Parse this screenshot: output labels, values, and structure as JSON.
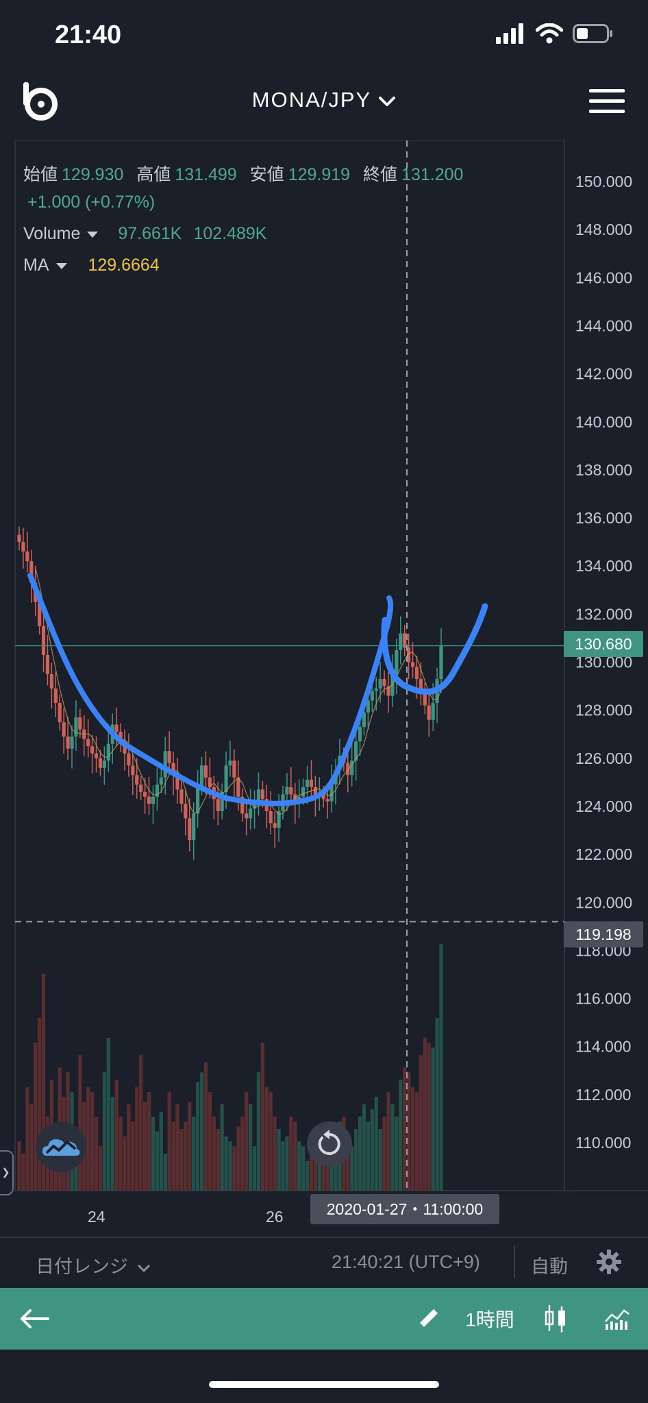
{
  "status_bar": {
    "time": "21:40"
  },
  "header": {
    "pair": "MONA/JPY"
  },
  "ohlc": {
    "open_label": "始値",
    "open": "129.930",
    "high_label": "高値",
    "high": "131.499",
    "low_label": "安値",
    "low": "129.919",
    "close_label": "終値",
    "close": "131.200",
    "change": "+1.000 (+0.77%)"
  },
  "volume": {
    "label": "Volume",
    "value1": "97.661K",
    "value2": "102.489K"
  },
  "ma": {
    "label": "MA",
    "value": "129.6664"
  },
  "price_axis": {
    "labels": [
      "150.000",
      "148.000",
      "146.000",
      "144.000",
      "142.000",
      "140.000",
      "138.000",
      "136.000",
      "134.000",
      "132.000",
      "130.000",
      "128.000",
      "126.000",
      "124.000",
      "122.000",
      "120.000",
      "118.000",
      "116.000",
      "114.000",
      "112.000",
      "110.000"
    ]
  },
  "current_price": "130.680",
  "crosshair_price": "119.198",
  "crosshair_date": "2020-01-27・11:00:00",
  "x_axis": {
    "labels": [
      "24",
      "26"
    ]
  },
  "range_bar": {
    "label": "日付レンジ",
    "time": "21:40:21 (UTC+9)",
    "auto": "自動"
  },
  "toolbar": {
    "interval": "1時間"
  },
  "colors": {
    "up": "#3f9484",
    "down": "#d0625a",
    "accent": "#3f9484",
    "ma": "#f0c23f",
    "drawing": "#3b82f6"
  },
  "chart_data": {
    "type": "candlestick",
    "pair": "MONA/JPY",
    "ylim": [
      108.0,
      151.0
    ],
    "closes": [
      135.0,
      134.6,
      134.2,
      133.3,
      132.5,
      131.5,
      130.3,
      129.5,
      128.9,
      128.3,
      127.5,
      126.9,
      126.4,
      126.9,
      127.7,
      127.2,
      126.8,
      126.5,
      126.2,
      126.0,
      125.6,
      125.9,
      126.6,
      127.4,
      127.1,
      126.6,
      126.2,
      125.7,
      125.3,
      124.9,
      124.6,
      124.4,
      124.1,
      124.4,
      124.9,
      125.2,
      126.3,
      125.8,
      125.3,
      124.7,
      124.1,
      123.5,
      122.6,
      123.7,
      124.8,
      125.7,
      125.2,
      124.8,
      124.3,
      123.8,
      124.6,
      125.7,
      125.9,
      125.2,
      124.4,
      123.7,
      123.5,
      123.9,
      124.2,
      124.7,
      124.3,
      123.8,
      123.3,
      123.1,
      123.8,
      124.5,
      124.8,
      124.5,
      124.1,
      124.4,
      124.8,
      125.1,
      124.8,
      124.4,
      124.5,
      124.3,
      124.2,
      124.9,
      125.5,
      126.1,
      125.8,
      125.3,
      125.9,
      126.7,
      127.3,
      127.9,
      128.4,
      128.8,
      128.9,
      129.3,
      129.0,
      128.6,
      129.5,
      130.5,
      131.2,
      130.6,
      130.0,
      129.8,
      129.3,
      128.8,
      128.2,
      127.6,
      128.3,
      129.3,
      130.7
    ],
    "volumes": [
      20,
      15,
      42,
      35,
      60,
      70,
      88,
      30,
      45,
      12,
      50,
      38,
      48,
      40,
      25,
      55,
      36,
      42,
      40,
      30,
      18,
      48,
      62,
      38,
      45,
      30,
      22,
      35,
      28,
      42,
      55,
      36,
      40,
      30,
      24,
      32,
      15,
      40,
      28,
      35,
      25,
      28,
      36,
      30,
      44,
      48,
      52,
      40,
      30,
      25,
      35,
      22,
      20,
      18,
      26,
      30,
      40,
      35,
      18,
      48,
      60,
      42,
      40,
      30,
      25,
      20,
      22,
      30,
      28,
      20,
      18,
      12,
      15,
      25,
      22,
      18,
      20,
      15,
      22,
      28,
      30,
      20,
      18,
      25,
      30,
      35,
      28,
      33,
      38,
      25,
      30,
      40,
      35,
      30,
      45,
      50,
      48,
      42,
      40,
      55,
      62,
      60,
      58,
      70,
      100
    ]
  }
}
